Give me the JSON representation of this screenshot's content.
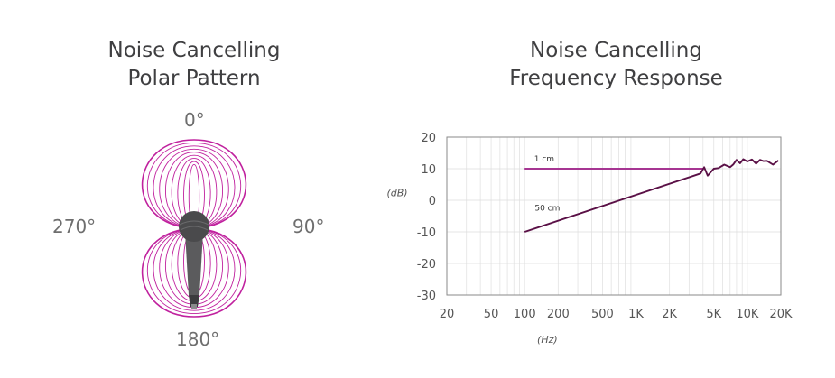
{
  "polar": {
    "title_line1": "Noise Cancelling",
    "title_line2": "Polar Pattern",
    "labels": {
      "top": "0°",
      "right": "90°",
      "bottom": "180°",
      "left": "270°"
    },
    "pattern_color": "#c0219e"
  },
  "freq": {
    "title_line1": "Noise Cancelling",
    "title_line2": "Frequency Response",
    "accent_color": "#a63592",
    "line_color": "#5a1046",
    "chart_data": {
      "type": "line",
      "x_scale": "log",
      "xlim": [
        20,
        20000
      ],
      "ylim": [
        -30,
        20
      ],
      "xlabel": "(Hz)",
      "ylabel": "(dB)",
      "x_ticks": [
        20,
        50,
        100,
        200,
        500,
        1000,
        2000,
        5000,
        10000,
        20000
      ],
      "x_tick_labels": [
        "20",
        "50",
        "100",
        "200",
        "500",
        "1K",
        "2K",
        "5K",
        "10K",
        "20K"
      ],
      "y_ticks": [
        20,
        10,
        0,
        -10,
        -20,
        -30
      ],
      "y_tick_labels": [
        "20",
        "10",
        "0",
        "-10",
        "-20",
        "-30"
      ],
      "grid": true,
      "series": [
        {
          "name": "1 cm",
          "color": "#a63592",
          "x": [
            100,
            4000
          ],
          "y": [
            10,
            10
          ]
        },
        {
          "name": "50 cm",
          "color": "#5a1046",
          "x": [
            100,
            3800,
            4100,
            4400,
            5000,
            5500,
            6200,
            7000,
            7500,
            8000,
            8600,
            9200,
            10000,
            11000,
            12000,
            13000,
            14000,
            15000,
            17000,
            19000
          ],
          "y": [
            -10,
            8.5,
            10.5,
            7.8,
            10,
            10.2,
            11.3,
            10.5,
            11.4,
            12.8,
            11.7,
            13,
            12.3,
            12.9,
            11.6,
            12.8,
            12.4,
            12.5,
            11.3,
            12.6
          ]
        }
      ]
    }
  }
}
